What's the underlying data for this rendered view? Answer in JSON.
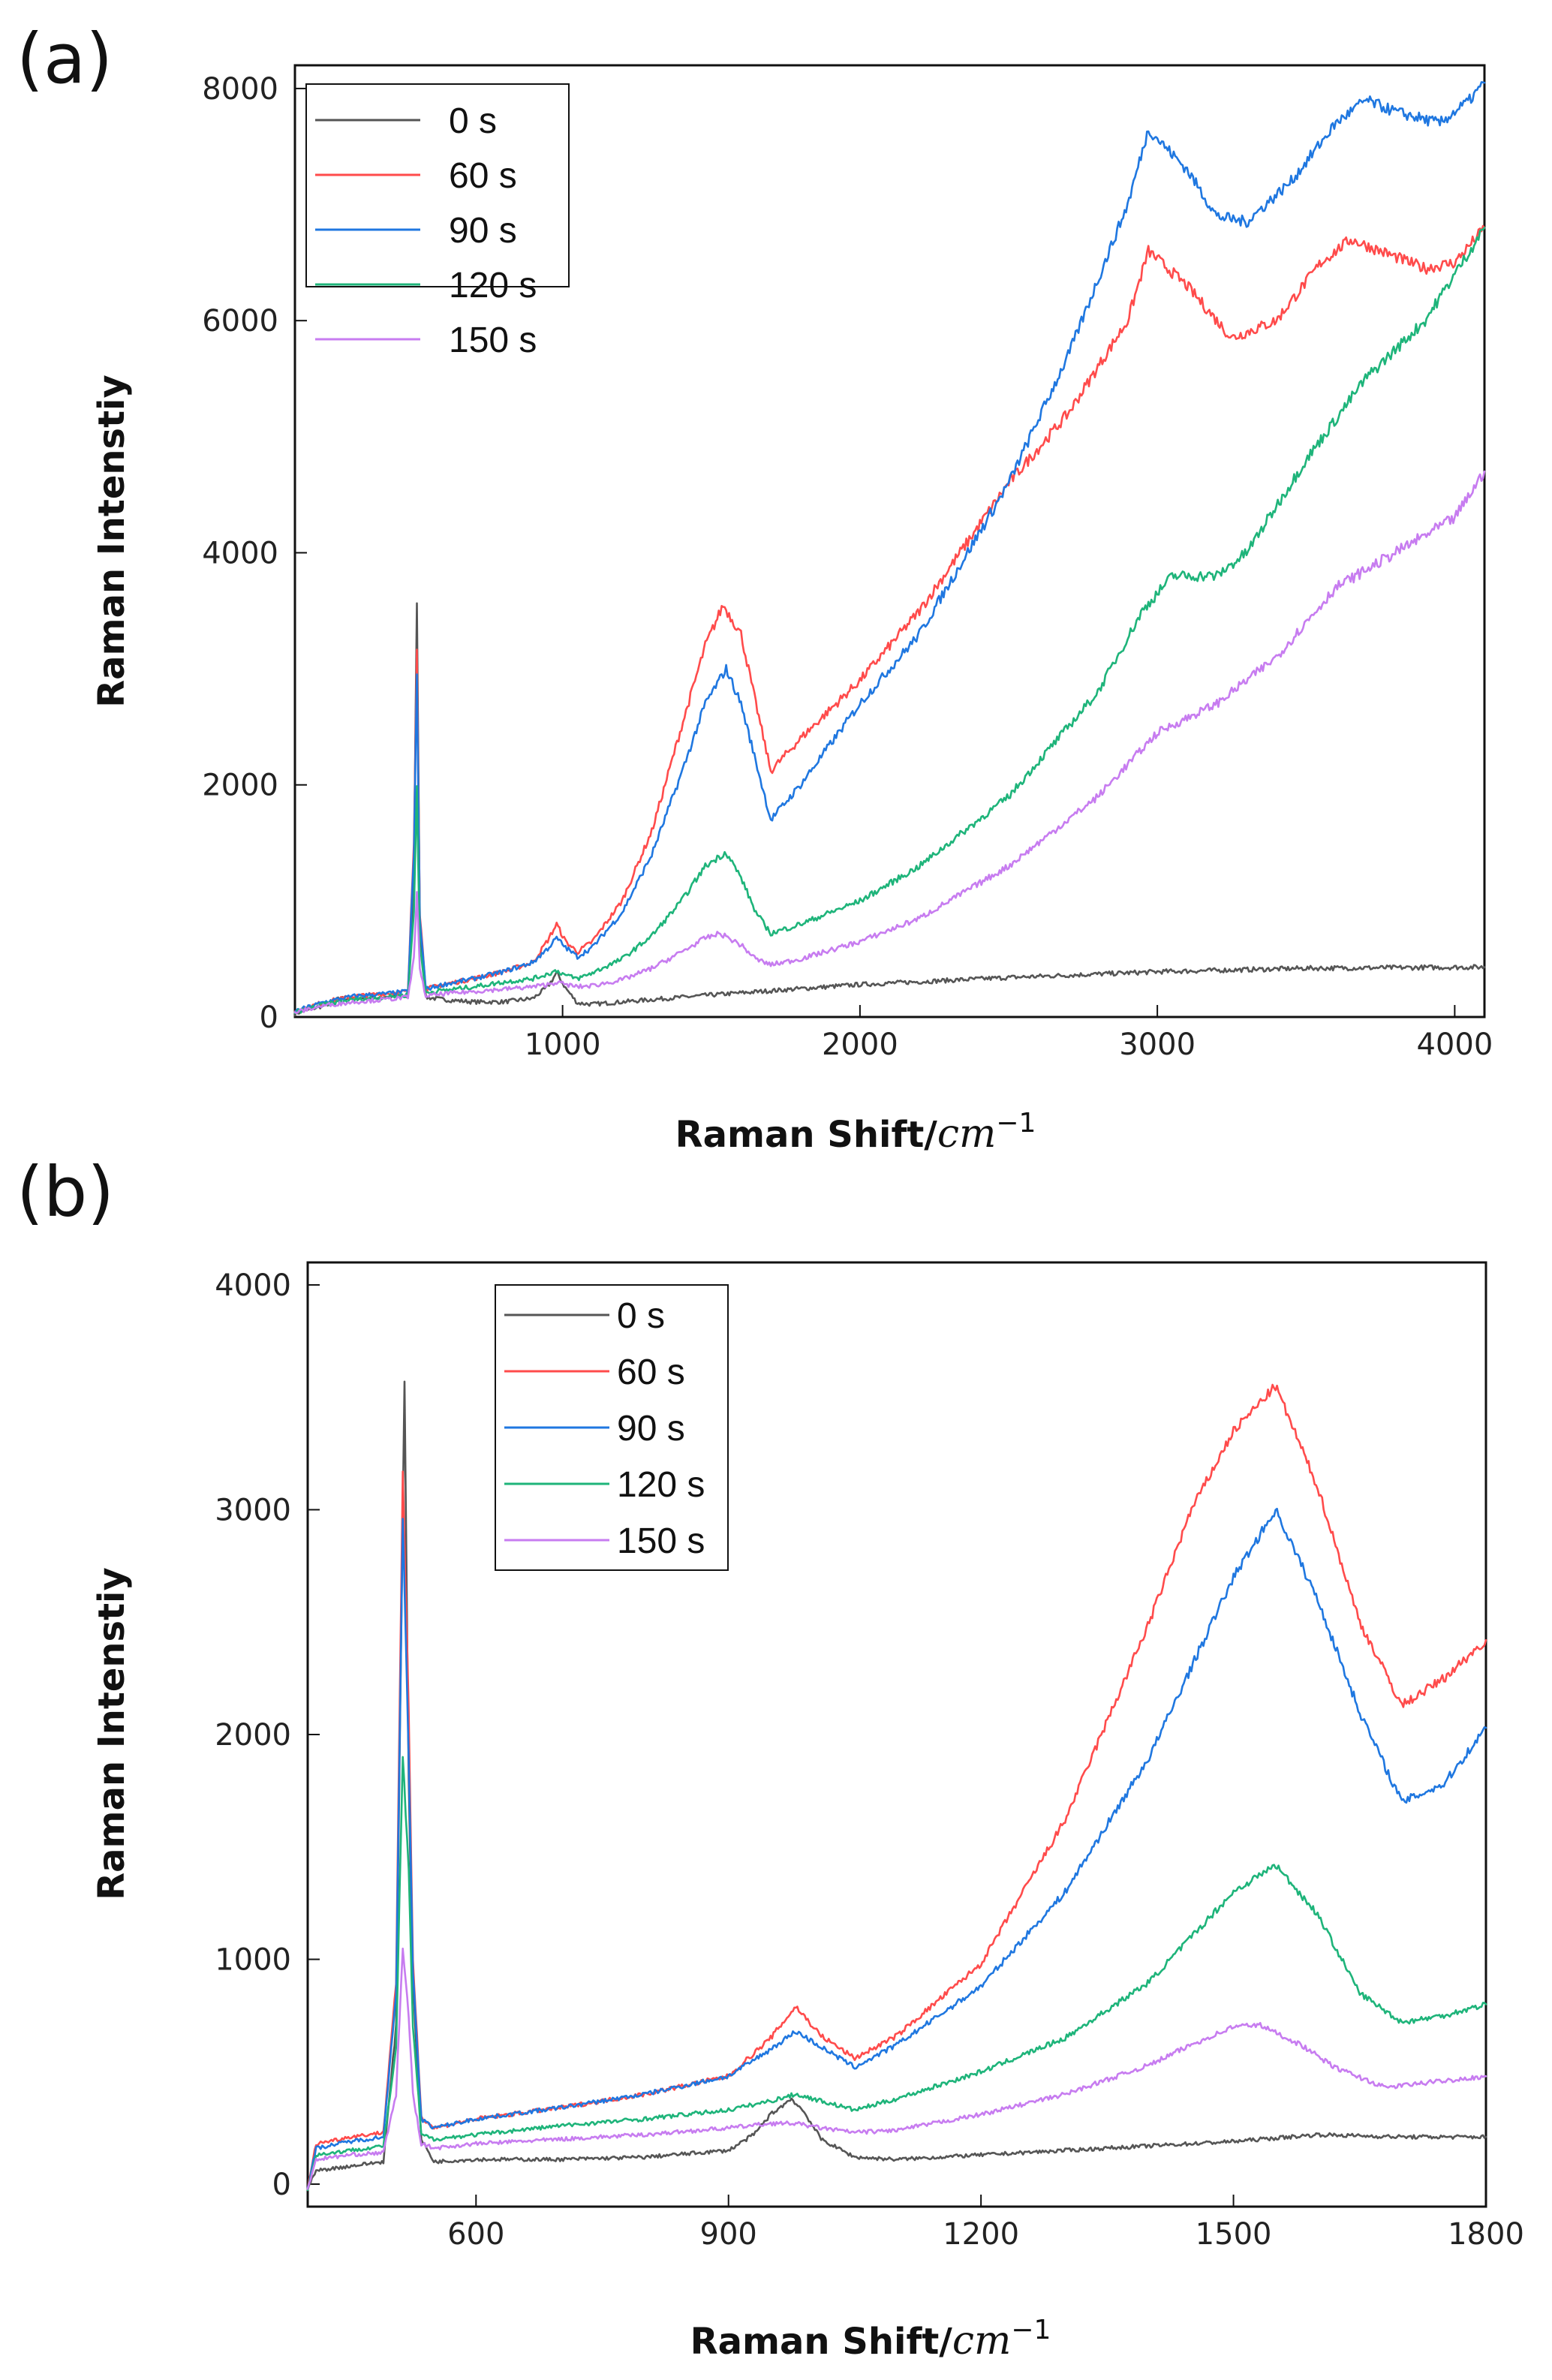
{
  "chart_data": [
    {
      "panel_label": "(a)",
      "type": "line",
      "title": "",
      "xlabel": "Raman Shift/",
      "xlabel_unit": "cm",
      "xlabel_exponent": "−1",
      "ylabel": "Raman Intenstiy",
      "xlim": [
        100,
        4100
      ],
      "ylim": [
        0,
        8200
      ],
      "xticks": [
        1000,
        2000,
        3000,
        4000
      ],
      "xtick_labels": [
        "1000",
        "2000",
        "3000",
        "4000"
      ],
      "yticks": [
        0,
        2000,
        4000,
        6000,
        8000
      ],
      "ytick_labels": [
        "0",
        "2000",
        "4000",
        "6000",
        "8000"
      ],
      "legend_position": "top-left",
      "series": [
        {
          "name": "0 s",
          "color": "#555555",
          "x": [
            100,
            200,
            250,
            300,
            400,
            480,
            500,
            510,
            520,
            540,
            600,
            700,
            800,
            900,
            950,
            980,
            1010,
            1050,
            1100,
            1200,
            1500,
            2000,
            2500,
            3000,
            3500,
            4100
          ],
          "y": [
            30,
            100,
            160,
            160,
            170,
            180,
            1200,
            3600,
            800,
            170,
            150,
            130,
            130,
            160,
            260,
            380,
            250,
            120,
            110,
            130,
            190,
            280,
            340,
            390,
            420,
            430
          ]
        },
        {
          "name": "60 s",
          "color": "#ff4b4b",
          "x": [
            100,
            200,
            300,
            400,
            480,
            500,
            510,
            520,
            540,
            600,
            700,
            800,
            900,
            950,
            980,
            1010,
            1050,
            1100,
            1200,
            1300,
            1400,
            1480,
            1540,
            1600,
            1650,
            1700,
            1800,
            2000,
            2200,
            2500,
            2700,
            2900,
            2970,
            3100,
            3250,
            3400,
            3550,
            3650,
            3750,
            3900,
            4000,
            4100
          ],
          "y": [
            50,
            130,
            180,
            200,
            220,
            1500,
            3200,
            900,
            240,
            280,
            330,
            390,
            470,
            660,
            800,
            650,
            560,
            650,
            1000,
            1600,
            2500,
            3200,
            3550,
            3300,
            2700,
            2120,
            2400,
            2900,
            3500,
            4600,
            5200,
            6000,
            6600,
            6300,
            5850,
            6000,
            6500,
            6700,
            6600,
            6450,
            6500,
            6800
          ]
        },
        {
          "name": "90 s",
          "color": "#1f77e0",
          "x": [
            100,
            200,
            300,
            400,
            480,
            500,
            510,
            520,
            540,
            600,
            700,
            800,
            900,
            950,
            980,
            1010,
            1050,
            1100,
            1200,
            1300,
            1400,
            1480,
            1550,
            1600,
            1650,
            1700,
            1800,
            2000,
            2200,
            2500,
            2700,
            2900,
            2970,
            3100,
            3200,
            3300,
            3450,
            3600,
            3700,
            3800,
            3950,
            4050,
            4100
          ],
          "y": [
            50,
            130,
            180,
            200,
            220,
            1400,
            2950,
            850,
            240,
            280,
            330,
            390,
            470,
            590,
            680,
            600,
            520,
            600,
            900,
            1400,
            2100,
            2700,
            3000,
            2700,
            2200,
            1700,
            2000,
            2700,
            3300,
            4600,
            5700,
            7000,
            7650,
            7300,
            6900,
            6850,
            7200,
            7700,
            7900,
            7800,
            7700,
            7900,
            8050
          ]
        },
        {
          "name": "120 s",
          "color": "#1eb47a",
          "x": [
            100,
            200,
            300,
            400,
            480,
            500,
            510,
            520,
            540,
            600,
            700,
            800,
            900,
            950,
            980,
            1010,
            1050,
            1100,
            1200,
            1300,
            1400,
            1480,
            1550,
            1600,
            1650,
            1700,
            1800,
            2000,
            2200,
            2500,
            2800,
            2950,
            3050,
            3200,
            3300,
            3500,
            3700,
            3900,
            4100
          ],
          "y": [
            40,
            110,
            150,
            170,
            190,
            900,
            2000,
            600,
            210,
            230,
            260,
            300,
            330,
            370,
            400,
            360,
            330,
            380,
            500,
            700,
            1000,
            1300,
            1420,
            1200,
            900,
            720,
            800,
            1000,
            1300,
            1900,
            2800,
            3500,
            3800,
            3800,
            4000,
            4800,
            5500,
            6000,
            6800
          ]
        },
        {
          "name": "150 s",
          "color": "#c77cf0",
          "x": [
            100,
            200,
            300,
            400,
            480,
            500,
            510,
            520,
            540,
            600,
            700,
            800,
            900,
            950,
            980,
            1010,
            1050,
            1100,
            1200,
            1300,
            1400,
            1480,
            1530,
            1600,
            1650,
            1700,
            1800,
            2000,
            2200,
            2500,
            2800,
            3000,
            3200,
            3400,
            3600,
            3800,
            4000,
            4100
          ],
          "y": [
            40,
            100,
            130,
            150,
            170,
            500,
            1100,
            400,
            180,
            200,
            220,
            240,
            260,
            280,
            300,
            280,
            260,
            270,
            320,
            420,
            560,
            680,
            720,
            620,
            500,
            450,
            500,
            650,
            850,
            1300,
            1900,
            2450,
            2700,
            3100,
            3700,
            4000,
            4300,
            4700
          ]
        }
      ]
    },
    {
      "panel_label": "(b)",
      "type": "line",
      "title": "",
      "xlabel": "Raman Shift/",
      "xlabel_unit": "cm",
      "xlabel_exponent": "−1",
      "ylabel": "Raman Intenstiy",
      "xlim": [
        400,
        1800
      ],
      "ylim": [
        -100,
        4100
      ],
      "xticks": [
        600,
        900,
        1200,
        1500,
        1800
      ],
      "xtick_labels": [
        "600",
        "900",
        "1200",
        "1500",
        "1800"
      ],
      "yticks": [
        0,
        1000,
        2000,
        3000,
        4000
      ],
      "ytick_labels": [
        "0",
        "1000",
        "2000",
        "3000",
        "4000"
      ],
      "legend_position": "top-left",
      "series": [
        {
          "name": "0 s",
          "color": "#555555",
          "x": [
            400,
            410,
            450,
            490,
            505,
            515,
            520,
            525,
            535,
            550,
            600,
            700,
            800,
            900,
            930,
            950,
            975,
            990,
            1010,
            1050,
            1100,
            1200,
            1300,
            1400,
            1500,
            1600,
            1700,
            1800
          ],
          "y": [
            -20,
            60,
            80,
            100,
            700,
            3580,
            1800,
            900,
            200,
            100,
            110,
            110,
            120,
            150,
            220,
            310,
            380,
            320,
            200,
            120,
            110,
            130,
            150,
            170,
            190,
            220,
            210,
            210
          ]
        },
        {
          "name": "60 s",
          "color": "#ff4b4b",
          "x": [
            400,
            410,
            450,
            490,
            505,
            513,
            520,
            525,
            535,
            550,
            600,
            700,
            800,
            900,
            950,
            980,
            1010,
            1050,
            1100,
            1200,
            1300,
            1400,
            1450,
            1500,
            1550,
            1600,
            1650,
            1700,
            1750,
            1800
          ],
          "y": [
            -20,
            180,
            210,
            230,
            900,
            3150,
            2100,
            1000,
            300,
            250,
            290,
            340,
            400,
            480,
            650,
            790,
            660,
            560,
            660,
            980,
            1620,
            2500,
            3000,
            3350,
            3550,
            3100,
            2500,
            2130,
            2250,
            2420
          ]
        },
        {
          "name": "90 s",
          "color": "#1f77e0",
          "x": [
            400,
            410,
            450,
            490,
            505,
            513,
            520,
            525,
            535,
            550,
            600,
            700,
            800,
            900,
            950,
            980,
            1010,
            1050,
            1100,
            1200,
            1300,
            1400,
            1450,
            1500,
            1550,
            1600,
            1650,
            1700,
            1750,
            1800
          ],
          "y": [
            -20,
            160,
            190,
            210,
            850,
            2950,
            1900,
            950,
            290,
            250,
            290,
            340,
            400,
            480,
            600,
            680,
            610,
            520,
            620,
            880,
            1300,
            1900,
            2300,
            2700,
            3000,
            2600,
            2100,
            1700,
            1780,
            2030
          ]
        },
        {
          "name": "120 s",
          "color": "#1eb47a",
          "x": [
            400,
            410,
            450,
            490,
            505,
            513,
            520,
            525,
            535,
            550,
            600,
            700,
            800,
            900,
            950,
            980,
            1010,
            1050,
            1100,
            1200,
            1300,
            1400,
            1450,
            1500,
            1550,
            1600,
            1650,
            1700,
            1750,
            1800
          ],
          "y": [
            -20,
            130,
            150,
            170,
            600,
            1900,
            1400,
            700,
            220,
            200,
            220,
            260,
            290,
            330,
            370,
            400,
            370,
            330,
            380,
            500,
            650,
            900,
            1100,
            1300,
            1420,
            1200,
            850,
            720,
            750,
            800
          ]
        },
        {
          "name": "150 s",
          "color": "#c77cf0",
          "x": [
            400,
            410,
            450,
            490,
            505,
            513,
            520,
            525,
            535,
            550,
            600,
            700,
            800,
            900,
            950,
            980,
            1010,
            1050,
            1100,
            1200,
            1300,
            1400,
            1450,
            1500,
            1530,
            1580,
            1620,
            1680,
            1750,
            1800
          ],
          "y": [
            -20,
            110,
            130,
            140,
            400,
            1050,
            750,
            400,
            180,
            160,
            180,
            200,
            220,
            250,
            270,
            270,
            250,
            230,
            240,
            310,
            400,
            530,
            620,
            700,
            710,
            620,
            520,
            430,
            460,
            480
          ]
        }
      ]
    }
  ]
}
